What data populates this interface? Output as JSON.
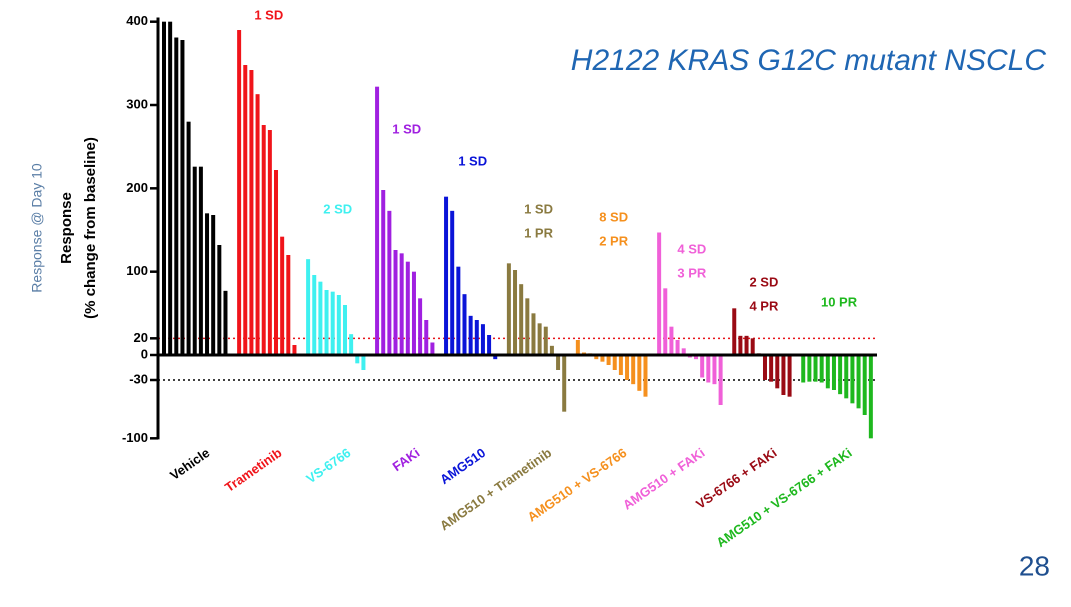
{
  "page_number": "28",
  "chart_data": {
    "type": "bar",
    "title": "H2122 KRAS G12C mutant NSCLC",
    "side_label": "Response @ Day 10",
    "y_label": [
      "Response",
      "(% change from baseline)"
    ],
    "ylim": [
      -100,
      405
    ],
    "yticks": [
      -100,
      -30,
      0,
      20,
      100,
      200,
      300,
      400
    ],
    "reference_lines": [
      {
        "value": 20,
        "color": "#e8141a"
      },
      {
        "value": -30,
        "color": "#000000"
      }
    ],
    "series": [
      {
        "name": "Vehicle",
        "color": "#000000",
        "values": [
          400,
          400,
          381,
          378,
          280,
          226,
          226,
          170,
          168,
          132,
          77
        ]
      },
      {
        "name": "Trametinib",
        "color": "#f0141a",
        "annotation": [
          "1 SD"
        ],
        "values": [
          390,
          348,
          342,
          313,
          276,
          270,
          222,
          142,
          120,
          12
        ]
      },
      {
        "name": "VS-6766",
        "color": "#3ff0f0",
        "annotation": [
          "2 SD"
        ],
        "values": [
          115,
          96,
          88,
          78,
          76,
          72,
          60,
          25,
          -10,
          -18
        ]
      },
      {
        "name": "FAKi",
        "color": "#a020e0",
        "annotation": [
          "1 SD"
        ],
        "values": [
          322,
          198,
          173,
          126,
          122,
          112,
          100,
          68,
          42,
          15
        ]
      },
      {
        "name": "AMG510",
        "color": "#0a14d8",
        "annotation": [
          "1 SD"
        ],
        "values": [
          190,
          173,
          106,
          73,
          47,
          42,
          37,
          24,
          -5
        ]
      },
      {
        "name": "AMG510 + Trametinib",
        "color": "#8a7a40",
        "annotation": [
          "1 SD",
          "1 PR"
        ],
        "values": [
          110,
          102,
          85,
          68,
          50,
          38,
          34,
          11,
          -18,
          -68
        ]
      },
      {
        "name": "AMG510 + VS-6766",
        "color": "#f5901e",
        "annotation": [
          "8 SD",
          "2 PR"
        ],
        "values": [
          18,
          3,
          2,
          -5,
          -8,
          -12,
          -18,
          -24,
          -30,
          -35,
          -43,
          -50
        ]
      },
      {
        "name": "AMG510 + FAKi",
        "color": "#f060d8",
        "annotation": [
          "4 SD",
          "3 PR"
        ],
        "values": [
          147,
          80,
          34,
          18,
          8,
          -3,
          -5,
          -27,
          -33,
          -35,
          -60
        ]
      },
      {
        "name": "VS-6766 + FAKi",
        "color": "#9a0a14",
        "annotation": [
          "2 SD",
          "4 PR"
        ],
        "values": [
          56,
          23,
          23,
          20,
          2,
          -30,
          -32,
          -40,
          -48,
          -50
        ]
      },
      {
        "name": "AMG510 + VS-6766 + FAKi",
        "color": "#1eb81e",
        "annotation": [
          "10 PR"
        ],
        "values": [
          -33,
          -32,
          -32,
          -33,
          -40,
          -42,
          -47,
          -52,
          -58,
          -64,
          -72,
          -100
        ]
      }
    ]
  }
}
